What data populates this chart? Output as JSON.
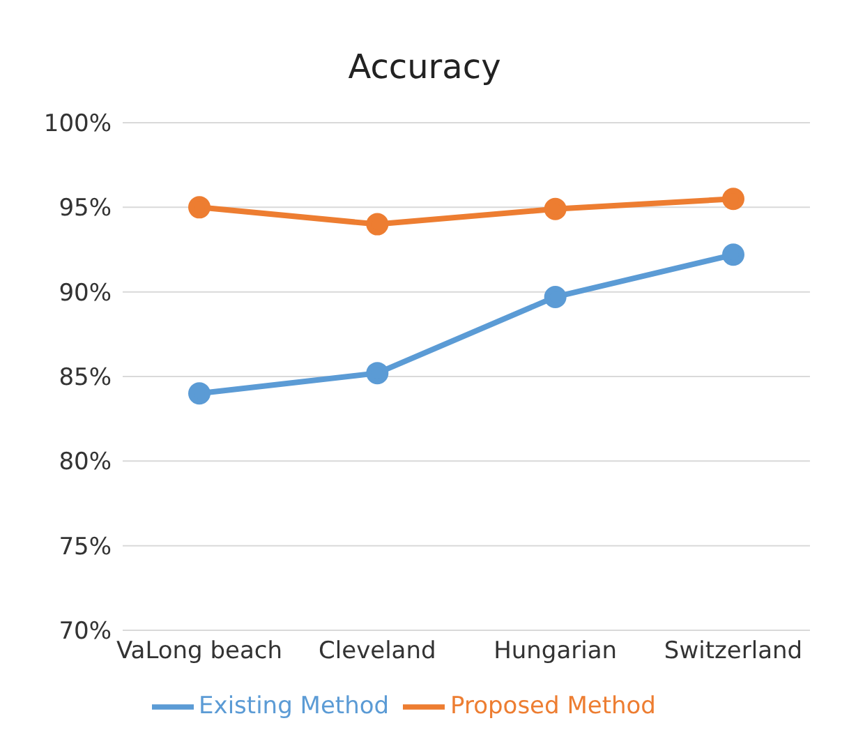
{
  "chart_data": {
    "type": "line",
    "title": "Accuracy",
    "categories": [
      "VaLong beach",
      "Cleveland",
      "Hungarian",
      "Switzerland"
    ],
    "series": [
      {
        "name": "Existing Method",
        "color": "#5b9bd5",
        "values": [
          84,
          85.2,
          89.7,
          92.2
        ]
      },
      {
        "name": "Proposed Method",
        "color": "#ed7d31",
        "values": [
          95,
          94,
          94.9,
          95.5
        ]
      }
    ],
    "ylim": [
      70,
      100
    ],
    "yticks": [
      {
        "value": 70,
        "label": "70%"
      },
      {
        "value": 75,
        "label": "75%"
      },
      {
        "value": 80,
        "label": "80%"
      },
      {
        "value": 85,
        "label": "85%"
      },
      {
        "value": 90,
        "label": "90%"
      },
      {
        "value": 95,
        "label": "95%"
      },
      {
        "value": 100,
        "label": "100%"
      }
    ],
    "grid": "y",
    "legend": "bottom",
    "marker": "circle",
    "line_style": "solid"
  }
}
